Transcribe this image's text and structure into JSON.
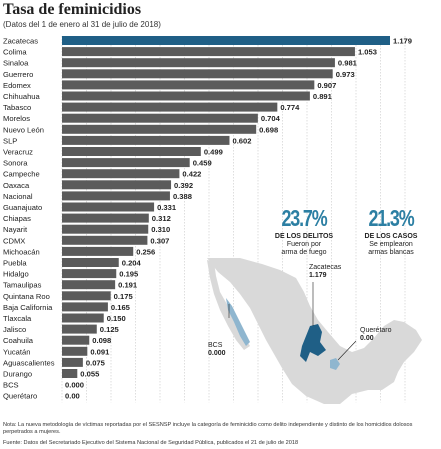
{
  "title": "Tasa de feminicidios",
  "subtitle": "(Datos del 1 de enero al 31 de julio de 2018)",
  "chart_data": {
    "type": "bar",
    "orientation": "horizontal",
    "categories": [
      "Zacatecas",
      "Colima",
      "Sinaloa",
      "Guerrero",
      "Edomex",
      "Chihuahua",
      "Tabasco",
      "Morelos",
      "Nuevo León",
      "SLP",
      "Veracruz",
      "Sonora",
      "Campeche",
      "Oaxaca",
      "Nacional",
      "Guanajuato",
      "Chiapas",
      "Nayarit",
      "CDMX",
      "Michoacán",
      "Puebla",
      "Hidalgo",
      "Tamaulipas",
      "Quintana Roo",
      "Baja California",
      "Tlaxcala",
      "Jalisco",
      "Coahuila",
      "Yucatán",
      "Aguascalientes",
      "Durango",
      "BCS",
      "Querétaro"
    ],
    "values": [
      1.179,
      1.053,
      0.981,
      0.973,
      0.907,
      0.891,
      0.774,
      0.704,
      0.698,
      0.602,
      0.499,
      0.459,
      0.422,
      0.392,
      0.388,
      0.331,
      0.312,
      0.31,
      0.307,
      0.256,
      0.204,
      0.195,
      0.191,
      0.175,
      0.165,
      0.15,
      0.125,
      0.098,
      0.091,
      0.075,
      0.055,
      0.0,
      0.0
    ],
    "value_labels": [
      "1.179",
      "1.053",
      "0.981",
      "0.973",
      "0.907",
      "0.891",
      "0.774",
      "0.704",
      "0.698",
      "0.602",
      "0.499",
      "0.459",
      "0.422",
      "0.392",
      "0.388",
      "0.331",
      "0.312",
      "0.310",
      "0.307",
      "0.256",
      "0.204",
      "0.195",
      "0.191",
      "0.175",
      "0.165",
      "0.150",
      "0.125",
      "0.098",
      "0.091",
      "0.075",
      "0.055",
      "0.000",
      "0.00"
    ],
    "xlim": [
      0,
      1.179
    ],
    "highlight_category": "Zacatecas",
    "colors": {
      "highlight": "#1f5f86",
      "bar": "#5b5b5b",
      "grid": "#bdbdbd"
    },
    "grid": true
  },
  "stats": [
    {
      "value": "23.7%",
      "head": "DE LOS DELITOS",
      "desc": [
        "Fueron por",
        "arma de fuego"
      ]
    },
    {
      "value": "21.3%",
      "head": "DE LOS CASOS",
      "desc": [
        "Se emplearon",
        "armas blancas"
      ]
    }
  ],
  "map": {
    "labels": [
      {
        "name": "Zacatecas",
        "value": "1.179"
      },
      {
        "name": "BCS",
        "value": "0.000"
      },
      {
        "name": "Querétaro",
        "value": "0.00"
      }
    ],
    "colors": {
      "land": "#d9d9d9",
      "zacatecas": "#1f5f86",
      "bcs": "#8fb6cf",
      "queretaro": "#8fb6cf"
    }
  },
  "note": "Nota: La nueva metodología de víctimas reportadas por el SESNSP incluye la categoría de feminicidio como delito independiente y distinto de los homicidios dolosos perpetrados a mujeres.",
  "source": "Fuente: Datos del Secretariado Ejecutivo del Sistema Nacional de Seguridad Pública, publicados el 21 de julio de 2018"
}
